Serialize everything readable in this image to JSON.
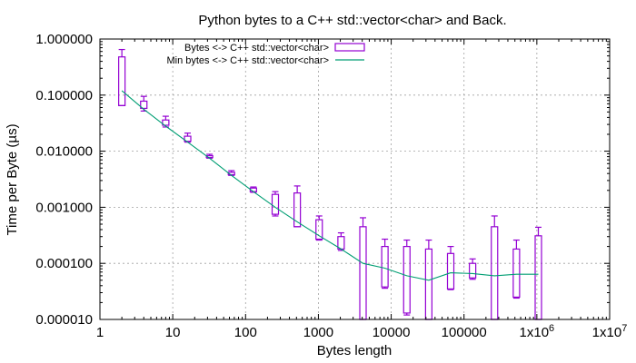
{
  "chart_data": {
    "type": "candlestick",
    "title": "Python bytes to a C++ std::vector<char> and Back.",
    "xlabel": "Bytes length",
    "ylabel": "Time per Byte (µs)",
    "x_scale": "log",
    "y_scale": "log",
    "xlim": [
      1,
      10000000
    ],
    "ylim": [
      1e-05,
      1
    ],
    "x_ticks": [
      {
        "value": 1,
        "label": "1"
      },
      {
        "value": 10,
        "label": "10"
      },
      {
        "value": 100,
        "label": "100"
      },
      {
        "value": 1000,
        "label": "1000"
      },
      {
        "value": 10000,
        "label": "10000"
      },
      {
        "value": 100000,
        "label": "100000"
      },
      {
        "value": 1000000,
        "label": "1x10",
        "exponent": "6"
      },
      {
        "value": 10000000,
        "label": "1x10",
        "exponent": "7"
      }
    ],
    "y_ticks": [
      {
        "value": 1e-05,
        "label": "0.000010"
      },
      {
        "value": 0.0001,
        "label": "0.000100"
      },
      {
        "value": 0.001,
        "label": "0.001000"
      },
      {
        "value": 0.01,
        "label": "0.010000"
      },
      {
        "value": 0.1,
        "label": "0.100000"
      },
      {
        "value": 1,
        "label": "1.000000"
      }
    ],
    "grid": true,
    "legend_position": "top",
    "series": [
      {
        "name": "Bytes <-> C++ std::vector<char>",
        "kind": "box",
        "color": "#9400d3",
        "points": [
          {
            "x": 2,
            "low": 0.065,
            "box_low": 0.065,
            "box_high": 0.48,
            "high": 0.65
          },
          {
            "x": 4,
            "low": 0.052,
            "box_low": 0.058,
            "box_high": 0.078,
            "high": 0.095
          },
          {
            "x": 8,
            "low": 0.027,
            "box_low": 0.029,
            "box_high": 0.036,
            "high": 0.042
          },
          {
            "x": 16,
            "low": 0.0145,
            "box_low": 0.015,
            "box_high": 0.0185,
            "high": 0.021
          },
          {
            "x": 32,
            "low": 0.0075,
            "box_low": 0.0077,
            "box_high": 0.0083,
            "high": 0.0088
          },
          {
            "x": 64,
            "low": 0.0037,
            "box_low": 0.0038,
            "box_high": 0.0042,
            "high": 0.0045
          },
          {
            "x": 128,
            "low": 0.00185,
            "box_low": 0.0019,
            "box_high": 0.0022,
            "high": 0.0023
          },
          {
            "x": 256,
            "low": 0.0007,
            "box_low": 0.00075,
            "box_high": 0.0017,
            "high": 0.0019
          },
          {
            "x": 512,
            "low": 0.00045,
            "box_low": 0.00045,
            "box_high": 0.0018,
            "high": 0.0024
          },
          {
            "x": 1024,
            "low": 0.00026,
            "box_low": 0.00027,
            "box_high": 0.0006,
            "high": 0.0007
          },
          {
            "x": 2048,
            "low": 0.00017,
            "box_low": 0.00018,
            "box_high": 0.0003,
            "high": 0.00035
          },
          {
            "x": 4096,
            "low": 1e-05,
            "box_low": 1e-05,
            "box_high": 0.00045,
            "high": 0.00065
          },
          {
            "x": 8192,
            "low": 3.6e-05,
            "box_low": 3.8e-05,
            "box_high": 0.0002,
            "high": 0.00027
          },
          {
            "x": 16384,
            "low": 1.2e-05,
            "box_low": 1.3e-05,
            "box_high": 0.0002,
            "high": 0.00026
          },
          {
            "x": 32768,
            "low": 1e-05,
            "box_low": 1e-05,
            "box_high": 0.00018,
            "high": 0.00026
          },
          {
            "x": 65536,
            "low": 3.4e-05,
            "box_low": 3.5e-05,
            "box_high": 0.00015,
            "high": 0.0002
          },
          {
            "x": 131072,
            "low": 5.2e-05,
            "box_low": 5.5e-05,
            "box_high": 0.0001,
            "high": 0.00012
          },
          {
            "x": 262144,
            "low": 1e-05,
            "box_low": 1e-05,
            "box_high": 0.00045,
            "high": 0.0007
          },
          {
            "x": 524288,
            "low": 2.4e-05,
            "box_low": 2.5e-05,
            "box_high": 0.00018,
            "high": 0.00026
          },
          {
            "x": 1048576,
            "low": 1e-05,
            "box_low": 1e-05,
            "box_high": 0.00031,
            "high": 0.00044
          }
        ]
      },
      {
        "name": "Min bytes <-> C++ std::vector<char>",
        "kind": "line",
        "color": "#009e73",
        "x": [
          2,
          4,
          8,
          16,
          32,
          64,
          128,
          256,
          512,
          1024,
          2048,
          4096,
          8192,
          16384,
          32768,
          65536,
          131072,
          262144,
          524288,
          1048576
        ],
        "y": [
          0.12,
          0.056,
          0.028,
          0.0145,
          0.0075,
          0.0037,
          0.0019,
          0.001,
          0.00055,
          0.00031,
          0.00018,
          0.0001,
          8.2e-05,
          6e-05,
          5e-05,
          6.8e-05,
          6.6e-05,
          6e-05,
          6.4e-05,
          6.4e-05
        ]
      }
    ]
  }
}
